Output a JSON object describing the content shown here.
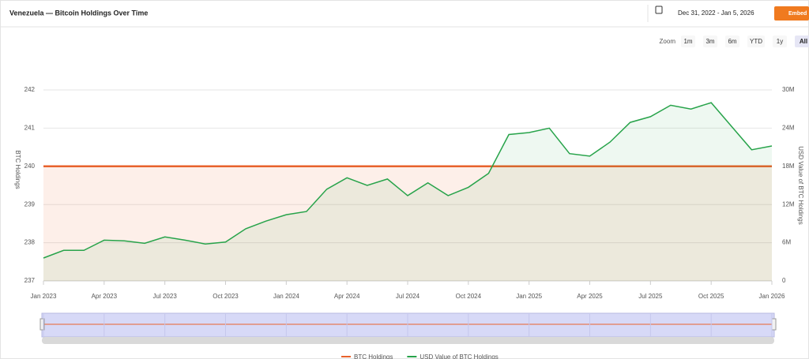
{
  "ui": {
    "date_range": "Dec 31, 2022 - Jan 5, 2026",
    "embed": "Embed",
    "zoom_label": "Zoom",
    "zoom_buttons": [
      "1m",
      "3m",
      "6m",
      "YTD",
      "1y",
      "All"
    ],
    "active_zoom": "All"
  },
  "chart_data": {
    "type": "line",
    "title": "Venezuela — Bitcoin Holdings Over Time",
    "y_label": "BTC Holdings",
    "y2_label": "USD Value of BTC Holdings",
    "x": [
      "2023-01",
      "2023-02",
      "2023-03",
      "2023-04",
      "2023-05",
      "2023-06",
      "2023-07",
      "2023-08",
      "2023-09",
      "2023-10",
      "2023-11",
      "2023-12",
      "2024-01",
      "2024-02",
      "2024-03",
      "2024-04",
      "2024-05",
      "2024-06",
      "2024-07",
      "2024-08",
      "2024-09",
      "2024-10",
      "2024-11",
      "2024-12",
      "2025-01",
      "2025-02",
      "2025-03",
      "2025-04",
      "2025-05",
      "2025-06",
      "2025-07",
      "2025-08",
      "2025-09",
      "2025-10",
      "2025-11",
      "2025-12",
      "2026-01"
    ],
    "series": [
      {
        "name": "BTC Holdings",
        "color": "#e8622c",
        "axis": "y",
        "values": [
          240,
          240,
          240,
          240,
          240,
          240,
          240,
          240,
          240,
          240,
          240,
          240,
          240,
          240,
          240,
          240,
          240,
          240,
          240,
          240,
          240,
          240,
          240,
          240,
          240,
          240,
          240,
          240,
          240,
          240,
          240,
          240,
          240,
          240,
          240,
          240,
          240
        ]
      },
      {
        "name": "USD Value of BTC Holdings",
        "color": "#27a34a",
        "axis": "y2",
        "values": [
          3600000,
          4800000,
          4800000,
          6400000,
          6300000,
          5900000,
          6900000,
          6400000,
          5800000,
          6100000,
          8200000,
          9400000,
          10400000,
          10900000,
          14400000,
          16200000,
          15000000,
          16000000,
          13400000,
          15400000,
          13400000,
          14700000,
          16900000,
          23000000,
          23300000,
          24000000,
          20000000,
          19600000,
          21800000,
          24900000,
          25800000,
          27600000,
          27000000,
          28000000,
          24300000,
          20600000,
          21200000
        ]
      }
    ],
    "xlim": [
      "2023-01",
      "2026-01"
    ],
    "xticks": [
      {
        "value": "2023-01",
        "label": "Jan 2023"
      },
      {
        "value": "2023-04",
        "label": "Apr 2023"
      },
      {
        "value": "2023-07",
        "label": "Jul 2023"
      },
      {
        "value": "2023-10",
        "label": "Oct 2023"
      },
      {
        "value": "2024-01",
        "label": "Jan 2024"
      },
      {
        "value": "2024-04",
        "label": "Apr 2024"
      },
      {
        "value": "2024-07",
        "label": "Jul 2024"
      },
      {
        "value": "2024-10",
        "label": "Oct 2024"
      },
      {
        "value": "2025-01",
        "label": "Jan 2025"
      },
      {
        "value": "2025-04",
        "label": "Apr 2025"
      },
      {
        "value": "2025-07",
        "label": "Jul 2025"
      },
      {
        "value": "2025-10",
        "label": "Oct 2025"
      },
      {
        "value": "2026-01",
        "label": "Jan 2026"
      }
    ],
    "ylim": [
      237,
      242
    ],
    "yticks": [
      237,
      238,
      239,
      240,
      241,
      242
    ],
    "y2lim": [
      0,
      30000000
    ],
    "y2ticks": [
      0,
      {
        "value": 6000000,
        "label": "6M"
      },
      {
        "value": 12000000,
        "label": "12M"
      },
      {
        "value": 18000000,
        "label": "18M"
      },
      {
        "value": 24000000,
        "label": "24M"
      },
      {
        "value": 30000000,
        "label": "30M"
      }
    ],
    "grid": true
  }
}
